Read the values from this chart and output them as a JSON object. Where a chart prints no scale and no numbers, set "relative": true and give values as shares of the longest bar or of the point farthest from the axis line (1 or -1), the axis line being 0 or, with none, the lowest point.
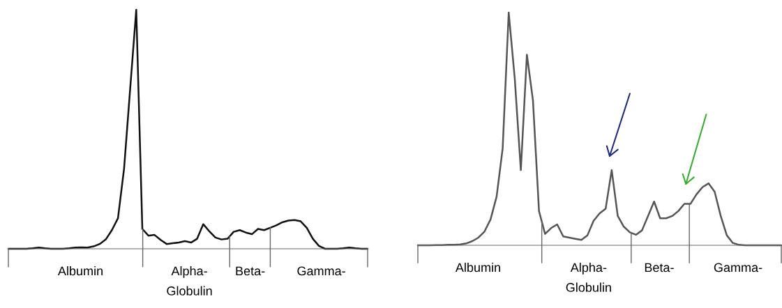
{
  "chart_data": [
    {
      "type": "line",
      "relative": true,
      "categories": [
        null,
        null,
        null,
        null,
        null,
        null,
        null,
        null,
        null,
        null,
        null,
        null,
        null,
        null,
        null,
        null,
        null,
        null,
        null,
        null,
        null,
        null,
        null,
        null,
        null,
        null,
        null,
        null,
        null,
        null,
        null,
        null,
        null,
        null,
        null,
        null,
        null,
        null,
        null,
        null,
        null,
        null,
        null,
        null,
        null,
        null,
        null,
        null,
        null,
        null,
        null,
        null,
        null,
        null,
        null,
        null,
        null,
        null,
        null,
        null
      ],
      "series": [
        {
          "color": "#111111",
          "values": [
            0,
            0,
            0,
            0,
            0.002,
            0.005,
            0.002,
            0,
            0,
            0,
            0.002,
            0.005,
            0.006,
            0.005,
            0.01,
            0.02,
            0.039,
            0.078,
            0.128,
            0.335,
            0.669,
            1.0,
            0.083,
            0.055,
            0.058,
            0.037,
            0.02,
            0.023,
            0.026,
            0.032,
            0.026,
            0.042,
            0.103,
            0.073,
            0.047,
            0.039,
            0.042,
            0.071,
            0.078,
            0.068,
            0.061,
            0.083,
            0.078,
            0.088,
            0.098,
            0.111,
            0.118,
            0.12,
            0.115,
            0.088,
            0.042,
            0.012,
            0,
            0,
            0,
            0.002,
            0.005,
            0.002,
            0,
            0
          ]
        }
      ],
      "annotations": [
        "Albumin",
        "Alpha-\nGlobulin",
        "Beta-",
        "Gamma-"
      ]
    },
    {
      "type": "line",
      "relative": true,
      "categories": [
        null,
        null,
        null,
        null,
        null,
        null,
        null,
        null,
        null,
        null,
        null,
        null,
        null,
        null,
        null,
        null,
        null,
        null,
        null,
        null,
        null,
        null,
        null,
        null,
        null,
        null,
        null,
        null,
        null,
        null,
        null,
        null,
        null,
        null,
        null,
        null,
        null,
        null,
        null,
        null,
        null,
        null,
        null,
        null,
        null,
        null,
        null,
        null,
        null,
        null,
        null,
        null,
        null,
        null,
        null,
        null,
        null,
        null,
        null,
        null,
        null
      ],
      "series": [
        {
          "color": "#555555",
          "values": [
            0,
            0,
            0,
            0.001,
            0.001,
            0.002,
            0.002,
            0.004,
            0.008,
            0.018,
            0.033,
            0.059,
            0.111,
            0.209,
            0.416,
            1.0,
            0.716,
            0.323,
            0.819,
            0.623,
            0.147,
            0.049,
            0.074,
            0.09,
            0.038,
            0.033,
            0.028,
            0.023,
            0.043,
            0.105,
            0.137,
            0.157,
            0.323,
            0.126,
            0.08,
            0.056,
            0.045,
            0.064,
            0.126,
            0.188,
            0.116,
            0.116,
            0.126,
            0.147,
            0.178,
            0.178,
            0.219,
            0.25,
            0.266,
            0.23,
            0.126,
            0.043,
            0.01,
            0.002,
            0,
            0,
            0,
            0,
            0,
            0,
            0
          ]
        }
      ],
      "annotations": [
        "Albumin",
        "Alpha-\nGlobulin",
        "Beta-",
        "Gamma-"
      ]
    }
  ]
}
